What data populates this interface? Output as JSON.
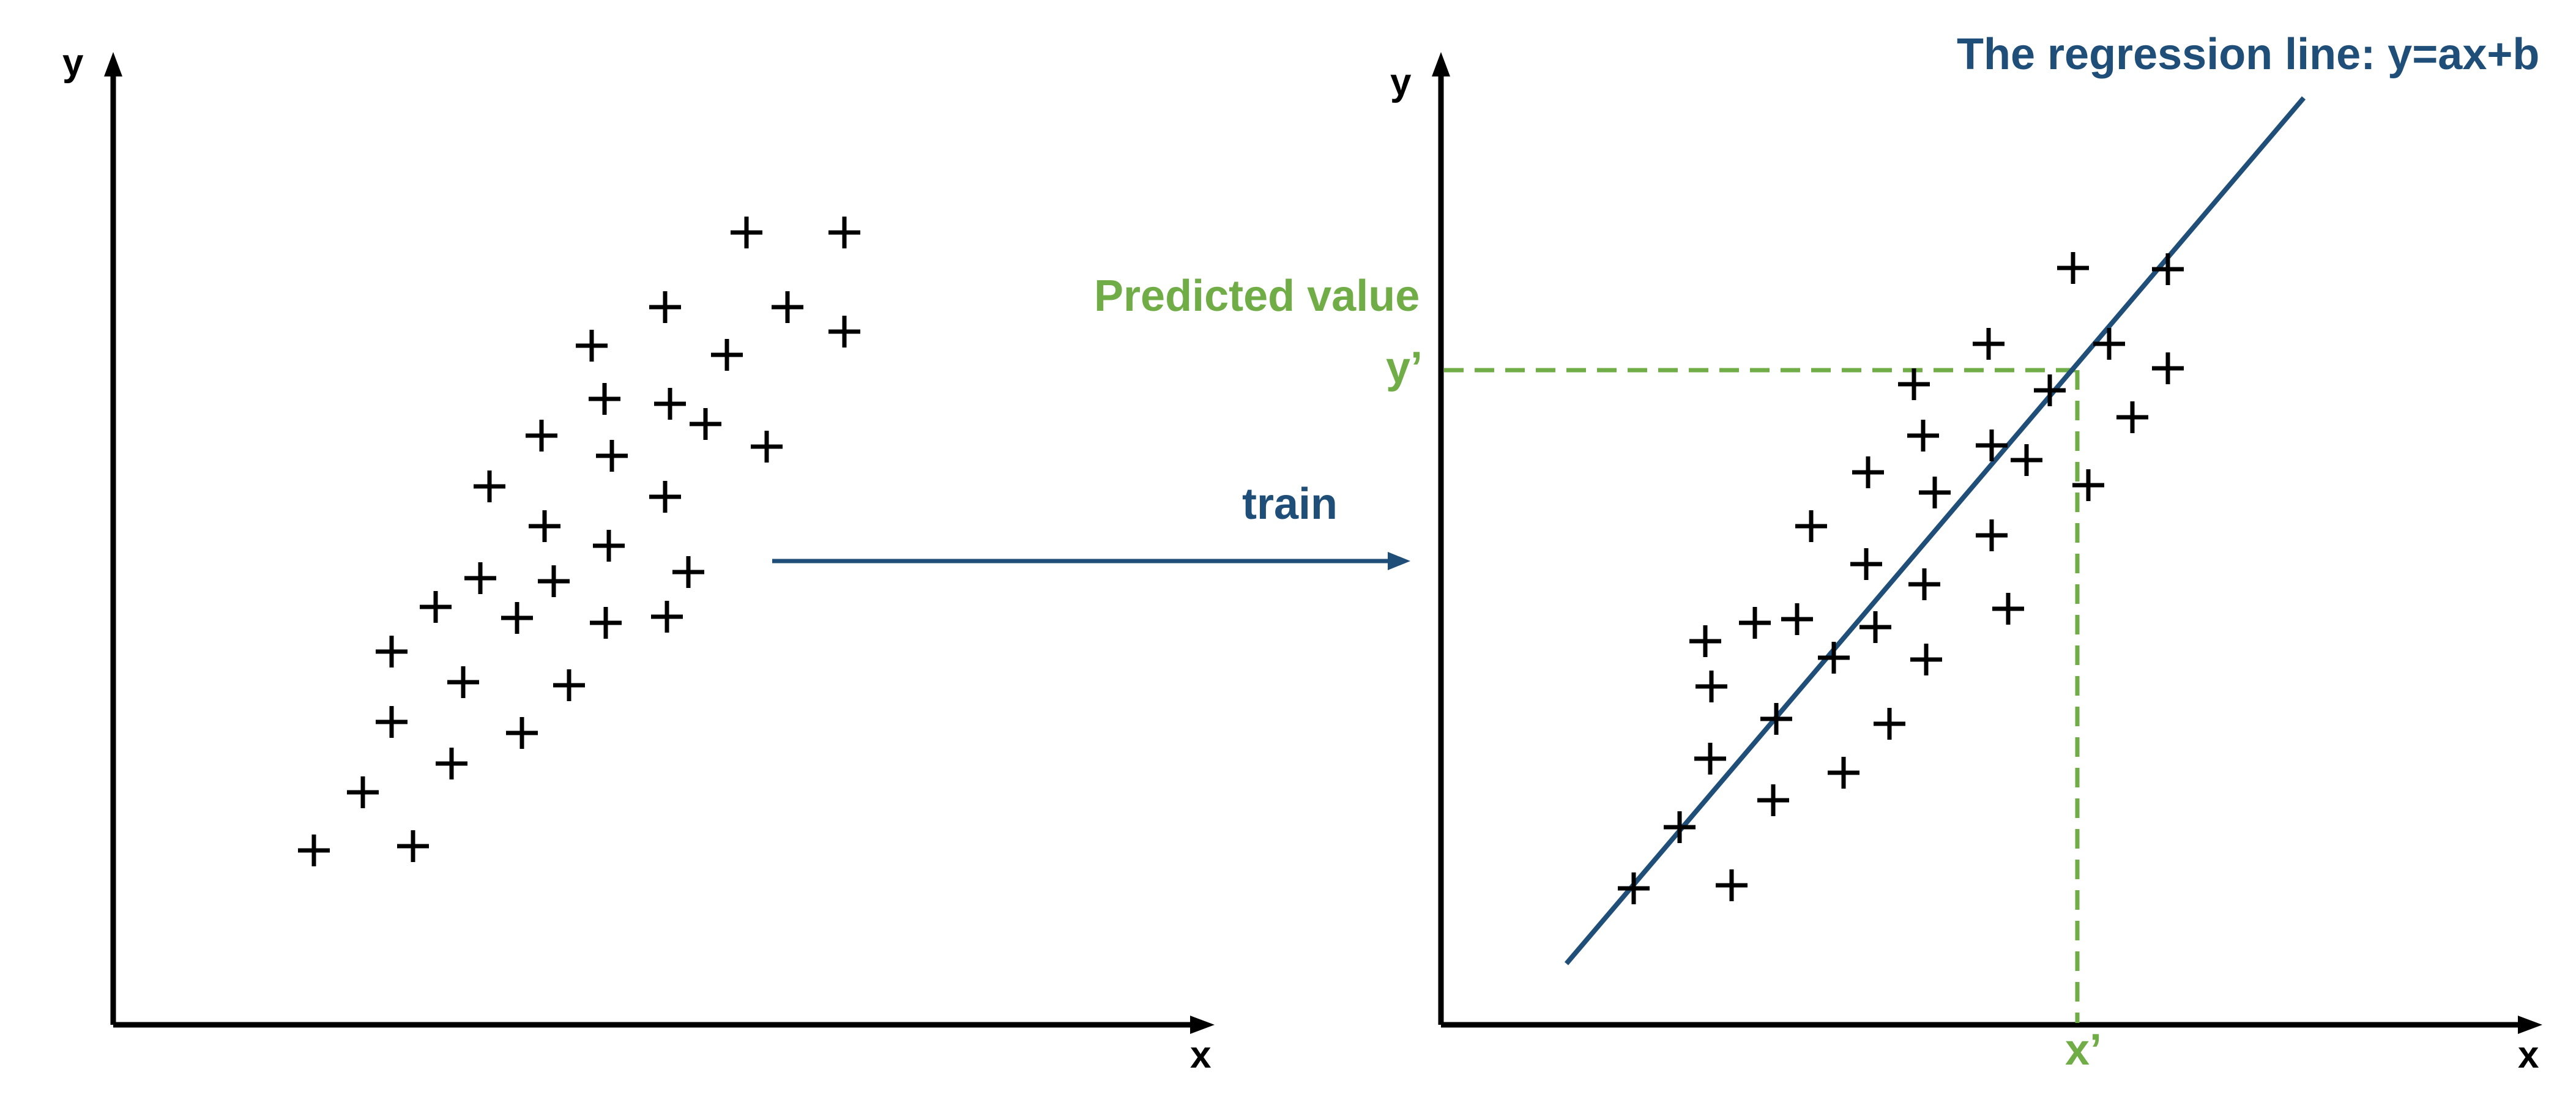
{
  "colors": {
    "axis": "#000000",
    "marker": "#000000",
    "regression": "#1F4E79",
    "prediction": "#70AD47"
  },
  "left_panel": {
    "x_label": "x",
    "y_label": "y"
  },
  "right_panel": {
    "x_label": "x",
    "y_label": "y",
    "regression_label": "The regression line: y=ax+b",
    "predicted_label": "Predicted value",
    "x_prime_label": "x’",
    "y_prime_label": "y’"
  },
  "train_label": "train",
  "markers": {
    "shape": "plus",
    "left_count": 35,
    "right_count": 36
  }
}
